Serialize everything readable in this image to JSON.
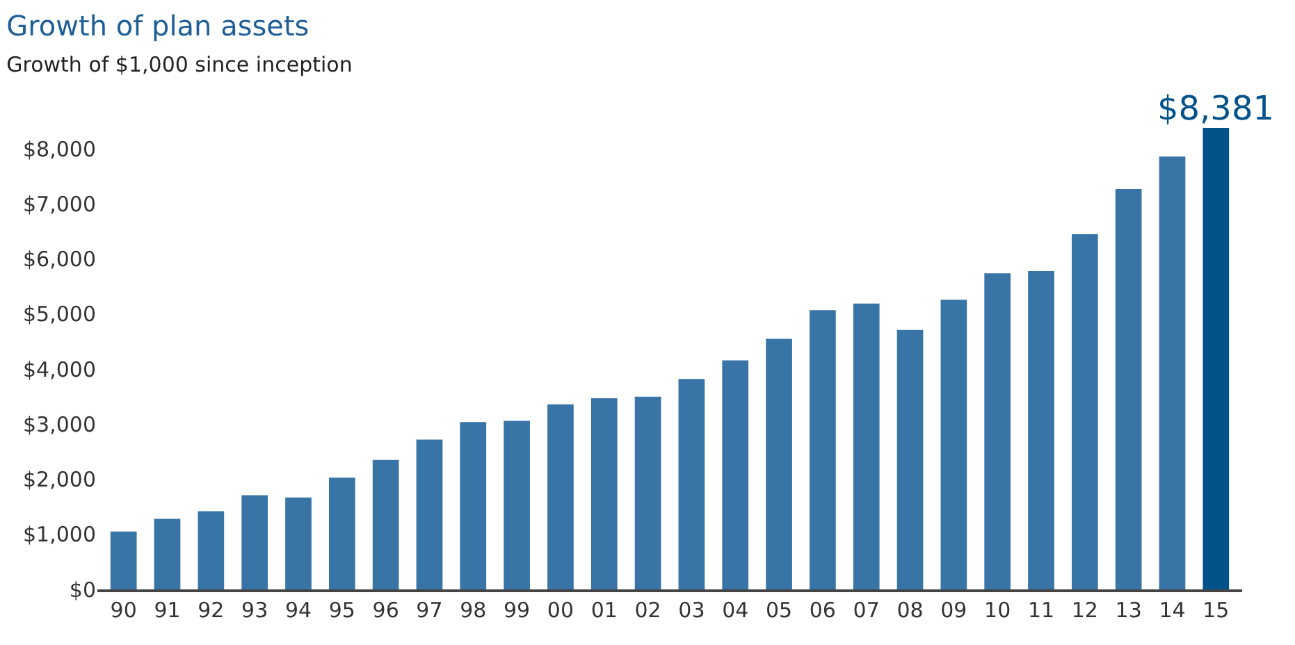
{
  "chart_data": {
    "type": "bar",
    "title": "Growth of plan assets",
    "subtitle": "Growth of $1,000 since inception",
    "categories": [
      "90",
      "91",
      "92",
      "93",
      "94",
      "95",
      "96",
      "97",
      "98",
      "99",
      "00",
      "01",
      "02",
      "03",
      "04",
      "05",
      "06",
      "07",
      "08",
      "09",
      "10",
      "11",
      "12",
      "13",
      "14",
      "15"
    ],
    "values": [
      1050,
      1280,
      1420,
      1710,
      1670,
      2030,
      2350,
      2720,
      3040,
      3060,
      3360,
      3470,
      3500,
      3820,
      4160,
      4550,
      5070,
      5190,
      4710,
      5260,
      5740,
      5780,
      6450,
      7270,
      7860,
      8381
    ],
    "colors": [
      "#3874a5",
      "#3874a5",
      "#3874a5",
      "#3874a5",
      "#3874a5",
      "#3874a5",
      "#3874a5",
      "#3874a5",
      "#3874a5",
      "#3874a5",
      "#3874a5",
      "#3874a5",
      "#3874a5",
      "#3874a5",
      "#3874a5",
      "#3874a5",
      "#3874a5",
      "#3874a5",
      "#3874a5",
      "#3874a5",
      "#3874a5",
      "#3874a5",
      "#3874a5",
      "#3874a5",
      "#3874a5",
      "#04528a"
    ],
    "value_labels": [
      null,
      null,
      null,
      null,
      null,
      null,
      null,
      null,
      null,
      null,
      null,
      null,
      null,
      null,
      null,
      null,
      null,
      null,
      null,
      null,
      null,
      null,
      null,
      null,
      null,
      "$8,381"
    ],
    "ylim": [
      0,
      8381
    ],
    "yticks": [
      {
        "value": 0,
        "label": "$0"
      },
      {
        "value": 1000,
        "label": "$1,000"
      },
      {
        "value": 2000,
        "label": "$2,000"
      },
      {
        "value": 3000,
        "label": "$3,000"
      },
      {
        "value": 4000,
        "label": "$4,000"
      },
      {
        "value": 5000,
        "label": "$5,000"
      },
      {
        "value": 6000,
        "label": "$6,000"
      },
      {
        "value": 7000,
        "label": "$7,000"
      },
      {
        "value": 8000,
        "label": "$8,000"
      }
    ],
    "legend": false
  }
}
